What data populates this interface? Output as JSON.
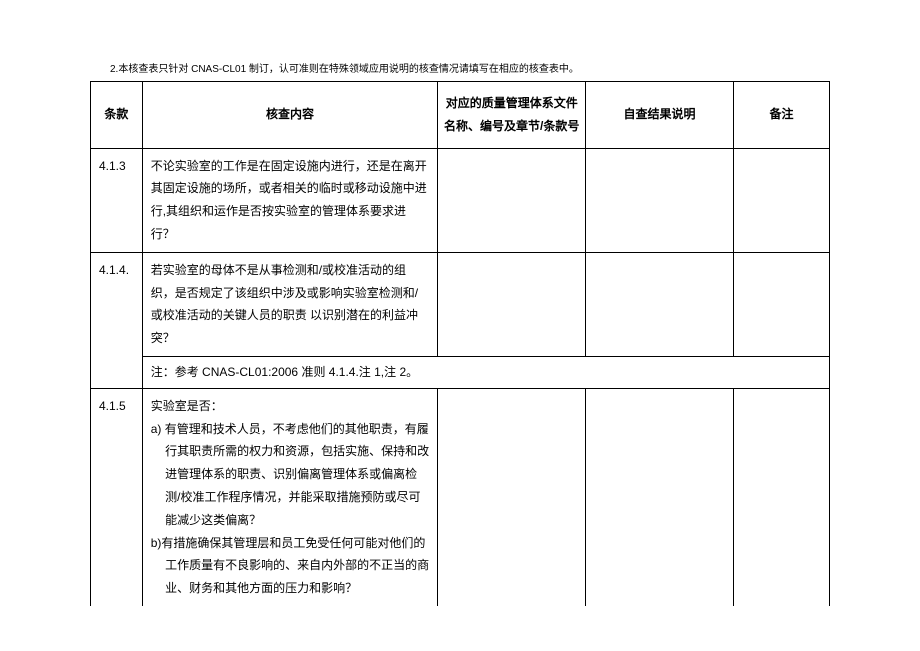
{
  "note_above_table": "2.本核查表只针对 CNAS-CL01 制订，认可准则在特殊领域应用说明的核查情况请填写在相应的核查表中。",
  "headers": {
    "clause": "条款",
    "content": "核查内容",
    "doc": "对应的质量管理体系文件名称、编号及章节/条款号",
    "result": "自查结果说明",
    "remark": "备注"
  },
  "rows": [
    {
      "clause": "4.1.3",
      "content_lines": [
        "不论实验室的工作是在固定设施内进行，还是在离开其固定设施的场所，或者相关的临时或移动设施中进行,其组织和运作是否按实验室的管理体系要求进行？"
      ],
      "doc": "",
      "result": "",
      "remark": ""
    },
    {
      "clause": "4.1.4.",
      "content_lines": [
        "若实验室的母体不是从事检测和/或校准活动的组织，是否规定了该组织中涉及或影响实验室检测和/或校准活动的关键人员的职责 以识别潜在的利益冲突？"
      ],
      "doc": "",
      "result": "",
      "remark": "",
      "sub_note": "注：参考 CNAS-CL01:2006 准则 4.1.4.注 1,注 2。"
    },
    {
      "clause": "4.1.5",
      "content_intro": "实验室是否：",
      "content_items": [
        {
          "label": "a)",
          "text": "有管理和技术人员，不考虑他们的其他职责，有履行其职责所需的权力和资源，包括实施、保持和改进管理体系的职责、识别偏离管理体系或偏离检测/校准工作程序情况，并能采取措施预防或尽可能减少这类偏离？"
        },
        {
          "label": "b)",
          "text": "有措施确保其管理层和员工免受任何可能对他们的工作质量有不良影响的、来自内外部的不正当的商业、财务和其他方面的压力和影响？"
        }
      ],
      "doc": "",
      "result": "",
      "remark": ""
    }
  ],
  "colors": {
    "text": "#000000",
    "background": "#ffffff",
    "border": "#000000"
  }
}
